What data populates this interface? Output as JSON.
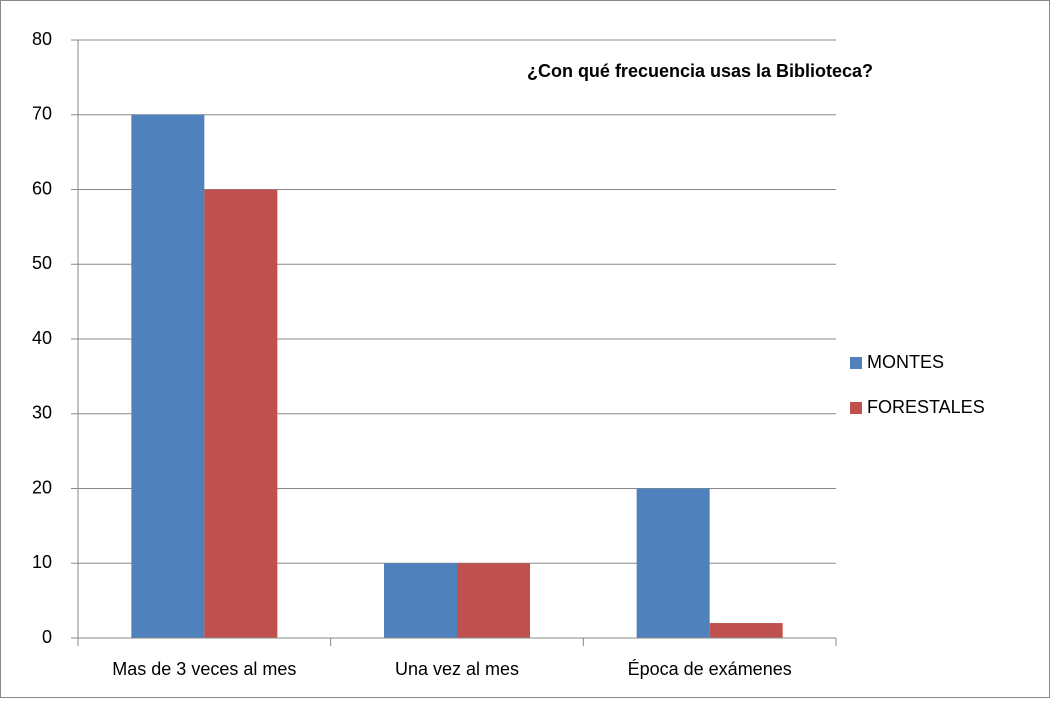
{
  "chart_data": {
    "type": "bar",
    "title": "¿Con qué frecuencia usas la Biblioteca?",
    "categories": [
      "Mas de 3 veces al mes",
      "Una vez al mes",
      "Época de exámenes"
    ],
    "series": [
      {
        "name": "MONTES",
        "color": "#4f81bd",
        "values": [
          70,
          10,
          20
        ]
      },
      {
        "name": "FORESTALES",
        "color": "#c0504d",
        "values": [
          60,
          10,
          2
        ]
      }
    ],
    "ylim": [
      0,
      80
    ],
    "yticks": [
      0,
      10,
      20,
      30,
      40,
      50,
      60,
      70,
      80
    ],
    "grid": true,
    "legend": "right"
  }
}
